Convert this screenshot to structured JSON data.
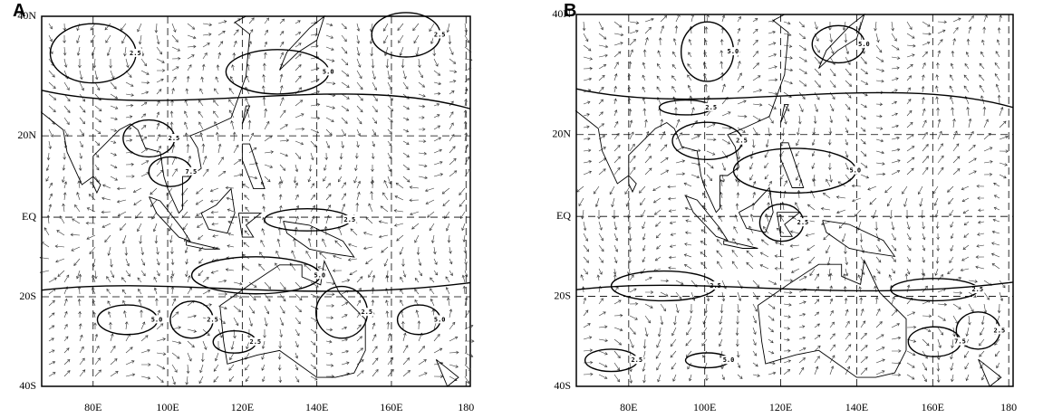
{
  "panels": [
    {
      "label": "A",
      "yticks": [
        "40N",
        "20N",
        "EQ",
        "20S",
        "40S"
      ],
      "xticks": [
        "80E",
        "100E",
        "120E",
        "140E",
        "160E",
        "180"
      ],
      "contour_labels": [
        "2.5",
        "5.0",
        "7.5",
        "2.5",
        "5.0",
        "2.5",
        "2.5",
        "5.0",
        "2.5",
        "2.5",
        "5.0",
        "2.5"
      ]
    },
    {
      "label": "B",
      "yticks": [
        "40N",
        "20N",
        "EQ",
        "20S",
        "40S"
      ],
      "xticks": [
        "80E",
        "100E",
        "120E",
        "140E",
        "160E",
        "180"
      ],
      "contour_labels": [
        "2.5",
        "5.0",
        "2.5",
        "5.0",
        "2.5",
        "2.5",
        "5.0",
        "2.5",
        "2.5",
        "7.5",
        "2.5",
        "5.0"
      ]
    }
  ]
}
